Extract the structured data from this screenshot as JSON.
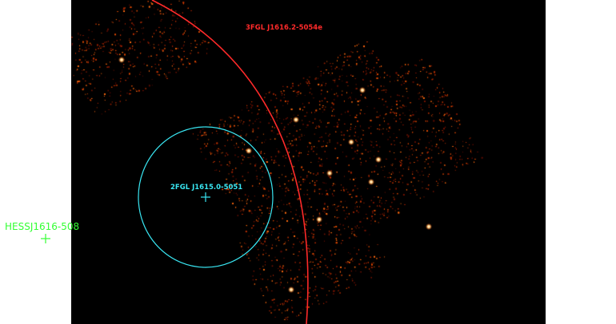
{
  "image": {
    "kind": "x-ray count map",
    "colormap": "hot",
    "background": "#000000",
    "page_background": "#ffffff"
  },
  "sources": [
    {
      "id": "3fgl",
      "label": "3FGL J1616.2-5054e",
      "color": "#ff2a2a",
      "marker": "circle-arc"
    },
    {
      "id": "2fgl",
      "label": "2FGL J1615.0-5051",
      "color": "#39e6f2",
      "marker": "ellipse-with-cross"
    },
    {
      "id": "hess",
      "label": "HESSJ1616-508",
      "color": "#33ff33",
      "marker": "cross"
    }
  ]
}
